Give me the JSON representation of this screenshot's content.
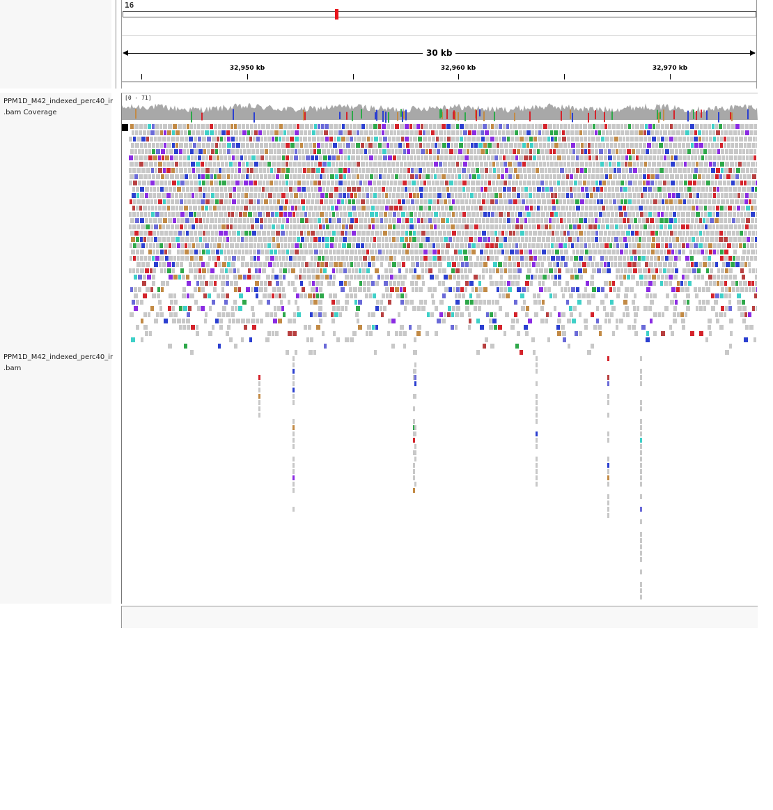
{
  "chromosome": "16",
  "region_span_label": "30 kb",
  "ruler_ticks": [
    "32,950 kb",
    "32,960 kb",
    "32,970 kb"
  ],
  "tracks": {
    "coverage_name": "PPM1D_M42_indexed_perc40_ir\n.bam Coverage",
    "alignment_name": "PPM1D_M42_indexed_perc40_ir\n.bam",
    "coverage_range": "[0 - 71]"
  },
  "colors": {
    "read_gray": "#c8c8c8",
    "coverage_gray": "#a8a8a8",
    "mismatch_A": "#2ea84a",
    "mismatch_C": "#2b3fd0",
    "mismatch_G": "#c28a45",
    "mismatch_T": "#d4232b",
    "insertion": "#8a2be2",
    "ideogram_marker": "#e8141b"
  }
}
